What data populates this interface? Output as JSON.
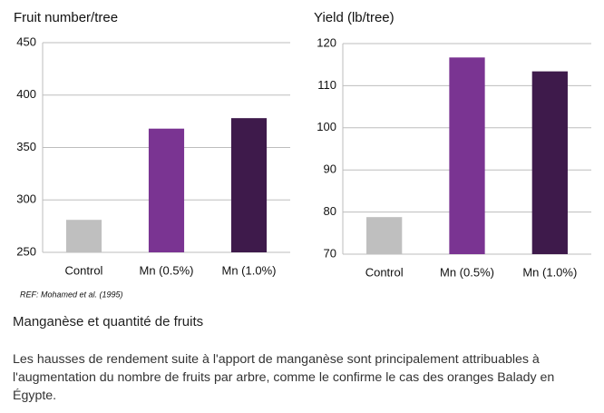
{
  "chart_data": [
    {
      "type": "bar",
      "title": "Fruit number/tree",
      "categories": [
        "Control",
        "Mn (0.5%)",
        "Mn (1.0%)"
      ],
      "values": [
        281,
        368,
        378
      ],
      "colors": [
        "#bfbfbf",
        "#7a3492",
        "#3e1a4b"
      ],
      "ylim": [
        250,
        450
      ],
      "yticks": [
        250,
        300,
        350,
        400,
        450
      ],
      "grid": true
    },
    {
      "type": "bar",
      "title": "Yield (lb/tree)",
      "categories": [
        "Control",
        "Mn (0.5%)",
        "Mn (1.0%)"
      ],
      "values": [
        78.8,
        116.7,
        113.4
      ],
      "colors": [
        "#bfbfbf",
        "#7a3492",
        "#3e1a4b"
      ],
      "ylim": [
        70,
        120
      ],
      "yticks": [
        70,
        80,
        90,
        100,
        110,
        120
      ],
      "grid": true
    }
  ],
  "reference": "REF: Mohamed  et al. (1995)",
  "section": {
    "heading": "Manganèse et quantité de fruits",
    "paragraph": "Les hausses de rendement suite à l'apport de manganèse sont principalement attribuables à l'augmentation du nombre de fruits par arbre, comme le confirme le cas des oranges Balady en Égypte."
  }
}
